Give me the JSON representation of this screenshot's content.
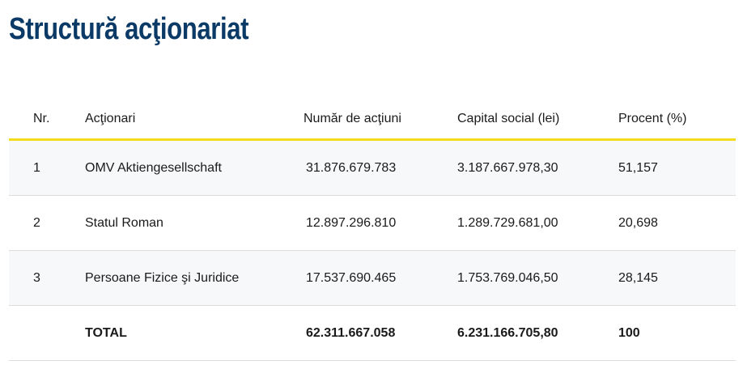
{
  "page": {
    "title": "Structură acţionariat"
  },
  "table": {
    "headers": {
      "nr": "Nr.",
      "shareholders": "Acţionari",
      "shares": "Număr de acţiuni",
      "capital": "Capital  social (lei)",
      "percent": "Procent (%)"
    },
    "rows": [
      {
        "nr": "1",
        "name": "OMV Aktiengesellschaft",
        "shares": "31.876.679.783",
        "capital": "3.187.667.978,30",
        "percent": "51,157"
      },
      {
        "nr": "2",
        "name": "Statul Roman",
        "shares": "12.897.296.810",
        "capital": "1.289.729.681,00",
        "percent": "20,698"
      },
      {
        "nr": "3",
        "name": "Persoane Fizice şi Juridice",
        "shares": "17.537.690.465",
        "capital": "1.753.769.046,50",
        "percent": "28,145"
      }
    ],
    "total": {
      "label": "TOTAL",
      "shares": "62.311.667.058",
      "capital": "6.231.166.705,80",
      "percent": "100"
    }
  },
  "colors": {
    "title": "#0b3a66",
    "header_rule": "#f3dc1e",
    "row_shade": "#f6f8fa",
    "row_border": "#dcdcdc"
  }
}
